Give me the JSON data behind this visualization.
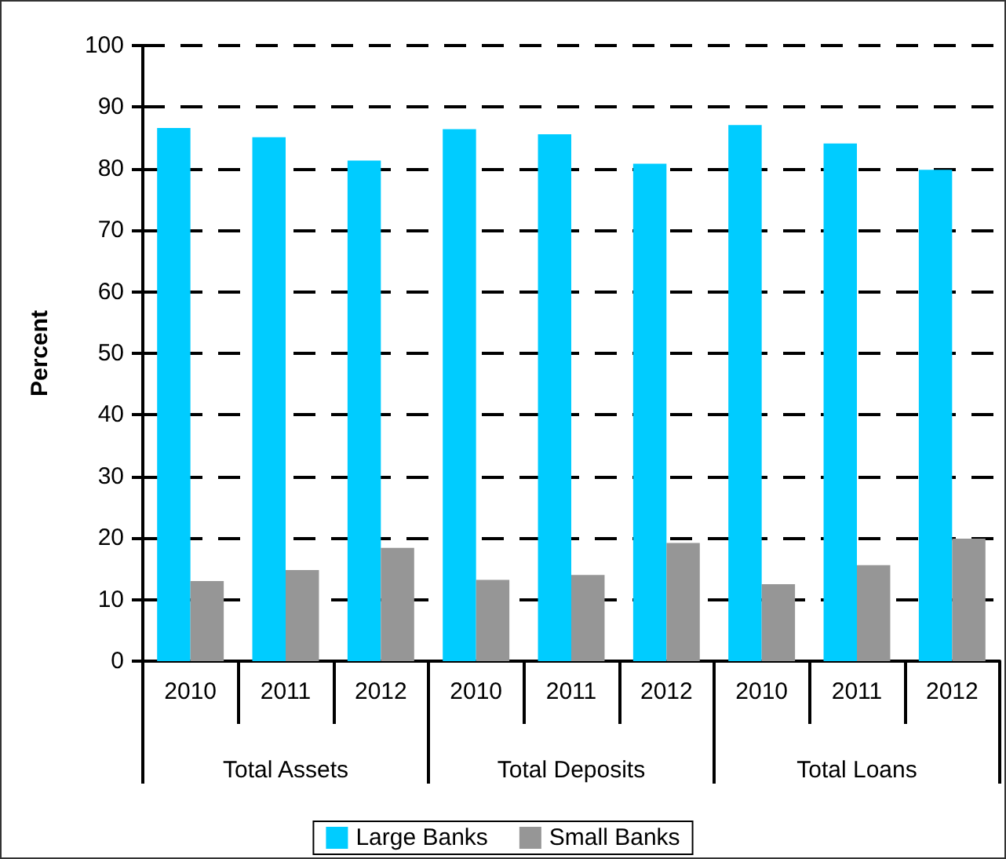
{
  "chart_data": {
    "type": "bar",
    "ylabel": "Percent",
    "categories": [
      "2010",
      "2011",
      "2012",
      "2010",
      "2011",
      "2012",
      "2010",
      "2011",
      "2012"
    ],
    "annotations": [
      "Total Assets",
      "Total Deposits",
      "Total Loans"
    ],
    "series": [
      {
        "name": "Large Banks",
        "color": "#00ccff",
        "values": [
          86.6,
          85.1,
          81.3,
          86.4,
          85.6,
          80.8,
          87.1,
          84.1,
          79.8
        ]
      },
      {
        "name": "Small Banks",
        "color": "#969696",
        "values": [
          13.0,
          14.8,
          18.4,
          13.2,
          14.0,
          19.2,
          12.5,
          15.6,
          19.9
        ]
      }
    ],
    "ylim": [
      0,
      100
    ],
    "yticks": [
      0,
      10,
      20,
      30,
      40,
      50,
      60,
      70,
      80,
      90,
      100
    ],
    "grid": "y",
    "legend": "bottom"
  }
}
